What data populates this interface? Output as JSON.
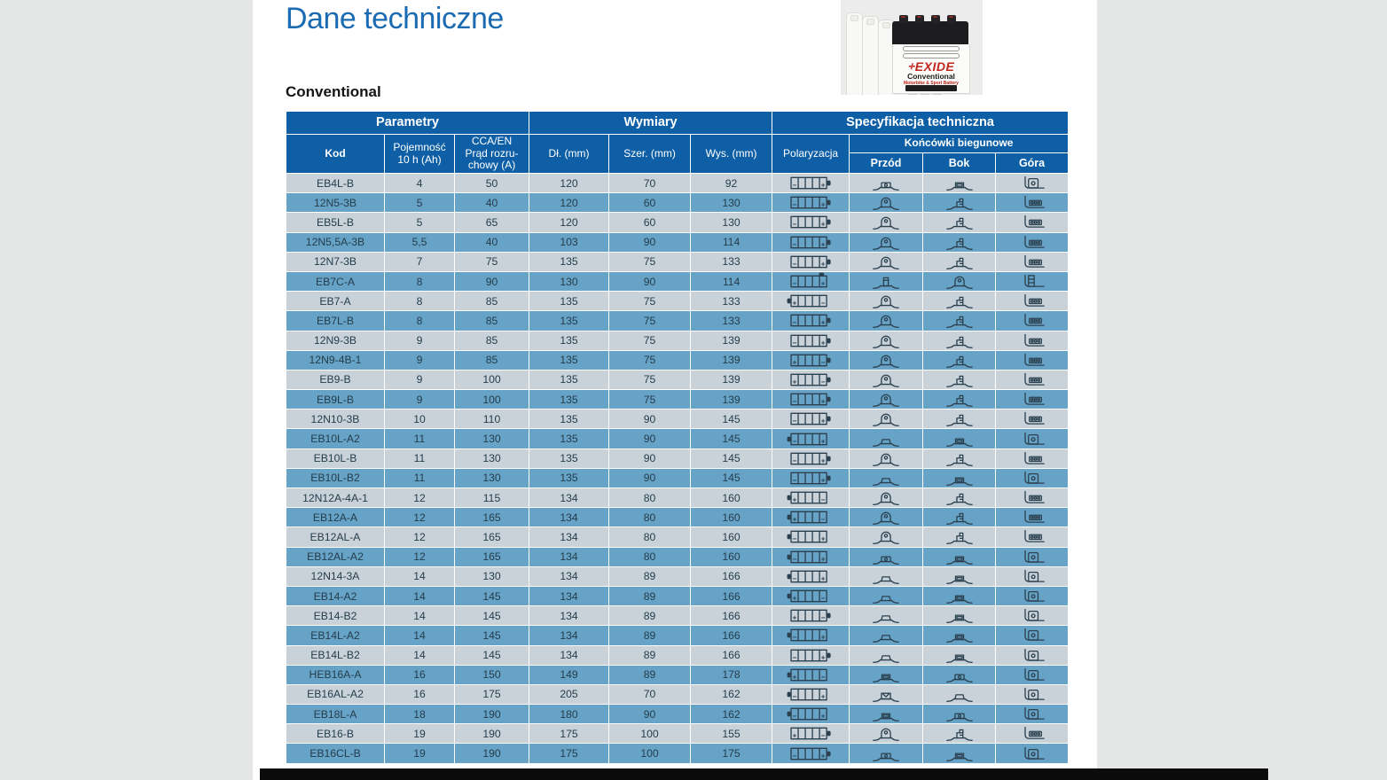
{
  "page": {
    "title": "Dane techniczne",
    "section_heading": "Conventional"
  },
  "product_image": {
    "brand": "EXIDE",
    "line": "Conventional",
    "subline": "Motorbike & Sport Battery"
  },
  "colors": {
    "header_blue": "#0e5fa5",
    "row_light": "#c9d2d9",
    "row_dark": "#67a3c7",
    "title_blue": "#1a6bb2",
    "icon_stroke": "#2b4150",
    "canvas_gray": "#e5e6e6",
    "page_white": "#ffffff"
  },
  "table": {
    "group_headers": {
      "parametry": "Parametry",
      "wymiary": "Wymiary",
      "specyfikacja": "Specyfikacja techniczna"
    },
    "column_headers": {
      "kod": "Kod",
      "pojemnosc": "Pojemność\n10 h (Ah)",
      "cca": "CCA/EN\nPrąd rozru-\nchowy (A)",
      "dl": "Dł. (mm)",
      "szer": "Szer. (mm)",
      "wys": "Wys. (mm)",
      "polaryzacja": "Polaryzacja",
      "koncowki": "Końcówki biegunowe",
      "przod": "Przód",
      "bok": "Bok",
      "gora": "Góra"
    },
    "rows": [
      {
        "code": "EB4L-B",
        "capacity": "4",
        "cca": "50",
        "length": "120",
        "width": "70",
        "height": "92",
        "polarity": {
          "left": "-",
          "right": "+",
          "bump": "right"
        },
        "front": "box-dot",
        "side": "box",
        "top": "bbox"
      },
      {
        "code": "12N5-3B",
        "capacity": "5",
        "cca": "40",
        "length": "120",
        "width": "60",
        "height": "130",
        "polarity": {
          "left": "-",
          "right": "+",
          "bump": "right"
        },
        "front": "dome",
        "side": "step",
        "top": "bars"
      },
      {
        "code": "EB5L-B",
        "capacity": "5",
        "cca": "65",
        "length": "120",
        "width": "60",
        "height": "130",
        "polarity": {
          "left": "-",
          "right": "+",
          "bump": "right"
        },
        "front": "dome",
        "side": "step",
        "top": "bars"
      },
      {
        "code": "12N5,5A-3B",
        "capacity": "5,5",
        "cca": "40",
        "length": "103",
        "width": "90",
        "height": "114",
        "polarity": {
          "left": "-",
          "right": "+",
          "bump": "right"
        },
        "front": "dome",
        "side": "step",
        "top": "bars"
      },
      {
        "code": "12N7-3B",
        "capacity": "7",
        "cca": "75",
        "length": "135",
        "width": "75",
        "height": "133",
        "polarity": {
          "left": "-",
          "right": "+",
          "bump": "right"
        },
        "front": "dome",
        "side": "step",
        "top": "bars"
      },
      {
        "code": "EB7C-A",
        "capacity": "8",
        "cca": "90",
        "length": "130",
        "width": "90",
        "height": "114",
        "polarity": {
          "left": "-",
          "right": "+",
          "bump": "top"
        },
        "front": "block",
        "side": "dome",
        "top": "bblock"
      },
      {
        "code": "EB7-A",
        "capacity": "8",
        "cca": "85",
        "length": "135",
        "width": "75",
        "height": "133",
        "polarity": {
          "left": "+",
          "right": "-",
          "bump": "left"
        },
        "front": "dome",
        "side": "step",
        "top": "bars"
      },
      {
        "code": "EB7L-B",
        "capacity": "8",
        "cca": "85",
        "length": "135",
        "width": "75",
        "height": "133",
        "polarity": {
          "left": "-",
          "right": "+",
          "bump": "right"
        },
        "front": "dome",
        "side": "step",
        "top": "bars"
      },
      {
        "code": "12N9-3B",
        "capacity": "9",
        "cca": "85",
        "length": "135",
        "width": "75",
        "height": "139",
        "polarity": {
          "left": "-",
          "right": "+",
          "bump": "right"
        },
        "front": "dome",
        "side": "step",
        "top": "bars"
      },
      {
        "code": "12N9-4B-1",
        "capacity": "9",
        "cca": "85",
        "length": "135",
        "width": "75",
        "height": "139",
        "polarity": {
          "left": "+",
          "right": "-",
          "bump": "right"
        },
        "front": "dome",
        "side": "step",
        "top": "bars"
      },
      {
        "code": "EB9-B",
        "capacity": "9",
        "cca": "100",
        "length": "135",
        "width": "75",
        "height": "139",
        "polarity": {
          "left": "+",
          "right": "-",
          "bump": "right"
        },
        "front": "dome",
        "side": "step",
        "top": "bars"
      },
      {
        "code": "EB9L-B",
        "capacity": "9",
        "cca": "100",
        "length": "135",
        "width": "75",
        "height": "139",
        "polarity": {
          "left": "-",
          "right": "+",
          "bump": "right"
        },
        "front": "dome",
        "side": "step",
        "top": "bars"
      },
      {
        "code": "12N10-3B",
        "capacity": "10",
        "cca": "110",
        "length": "135",
        "width": "90",
        "height": "145",
        "polarity": {
          "left": "-",
          "right": "+",
          "bump": "right"
        },
        "front": "dome",
        "side": "step",
        "top": "bars"
      },
      {
        "code": "EB10L-A2",
        "capacity": "11",
        "cca": "130",
        "length": "135",
        "width": "90",
        "height": "145",
        "polarity": {
          "left": "-",
          "right": "+",
          "bump": "left"
        },
        "front": "pad",
        "side": "box",
        "top": "bbox"
      },
      {
        "code": "EB10L-B",
        "capacity": "11",
        "cca": "130",
        "length": "135",
        "width": "90",
        "height": "145",
        "polarity": {
          "left": "-",
          "right": "+",
          "bump": "right"
        },
        "front": "dome",
        "side": "step",
        "top": "bars"
      },
      {
        "code": "EB10L-B2",
        "capacity": "11",
        "cca": "130",
        "length": "135",
        "width": "90",
        "height": "145",
        "polarity": {
          "left": "-",
          "right": "+",
          "bump": "right"
        },
        "front": "pad",
        "side": "box",
        "top": "bbox"
      },
      {
        "code": "12N12A-4A-1",
        "capacity": "12",
        "cca": "115",
        "length": "134",
        "width": "80",
        "height": "160",
        "polarity": {
          "left": "+",
          "right": "-",
          "bump": "left"
        },
        "front": "dome",
        "side": "step",
        "top": "bars"
      },
      {
        "code": "EB12A-A",
        "capacity": "12",
        "cca": "165",
        "length": "134",
        "width": "80",
        "height": "160",
        "polarity": {
          "left": "+",
          "right": "-",
          "bump": "left"
        },
        "front": "dome",
        "side": "step",
        "top": "bars"
      },
      {
        "code": "EB12AL-A",
        "capacity": "12",
        "cca": "165",
        "length": "134",
        "width": "80",
        "height": "160",
        "polarity": {
          "left": "-",
          "right": "+",
          "bump": "left"
        },
        "front": "dome",
        "side": "step",
        "top": "bars"
      },
      {
        "code": "EB12AL-A2",
        "capacity": "12",
        "cca": "165",
        "length": "134",
        "width": "80",
        "height": "160",
        "polarity": {
          "left": "-",
          "right": "+",
          "bump": "left"
        },
        "front": "box-dot",
        "side": "box",
        "top": "bbox"
      },
      {
        "code": "12N14-3A",
        "capacity": "14",
        "cca": "130",
        "length": "134",
        "width": "89",
        "height": "166",
        "polarity": {
          "left": "-",
          "right": "+",
          "bump": "left"
        },
        "front": "pad",
        "side": "box",
        "top": "bbox"
      },
      {
        "code": "EB14-A2",
        "capacity": "14",
        "cca": "145",
        "length": "134",
        "width": "89",
        "height": "166",
        "polarity": {
          "left": "+",
          "right": "-",
          "bump": "left"
        },
        "front": "pad",
        "side": "box",
        "top": "bbox"
      },
      {
        "code": "EB14-B2",
        "capacity": "14",
        "cca": "145",
        "length": "134",
        "width": "89",
        "height": "166",
        "polarity": {
          "left": "+",
          "right": "-",
          "bump": "right"
        },
        "front": "pad",
        "side": "box",
        "top": "bbox"
      },
      {
        "code": "EB14L-A2",
        "capacity": "14",
        "cca": "145",
        "length": "134",
        "width": "89",
        "height": "166",
        "polarity": {
          "left": "-",
          "right": "+",
          "bump": "left"
        },
        "front": "pad",
        "side": "box",
        "top": "bbox"
      },
      {
        "code": "EB14L-B2",
        "capacity": "14",
        "cca": "145",
        "length": "134",
        "width": "89",
        "height": "166",
        "polarity": {
          "left": "-",
          "right": "+",
          "bump": "right"
        },
        "front": "pad",
        "side": "box",
        "top": "bbox"
      },
      {
        "code": "HEB16A-A",
        "capacity": "16",
        "cca": "150",
        "length": "149",
        "width": "89",
        "height": "178",
        "polarity": {
          "left": "+",
          "right": "-",
          "bump": "left"
        },
        "front": "box",
        "side": "box-dot",
        "top": "bbox"
      },
      {
        "code": "EB16AL-A2",
        "capacity": "16",
        "cca": "175",
        "length": "205",
        "width": "70",
        "height": "162",
        "polarity": {
          "left": "-",
          "right": "+",
          "bump": "left"
        },
        "front": "notch",
        "side": "pad",
        "top": "bbox"
      },
      {
        "code": "EB18L-A",
        "capacity": "18",
        "cca": "190",
        "length": "180",
        "width": "90",
        "height": "162",
        "polarity": {
          "left": "-",
          "right": "+",
          "bump": "left"
        },
        "front": "box",
        "side": "box-dot",
        "top": "bbox"
      },
      {
        "code": "EB16-B",
        "capacity": "19",
        "cca": "190",
        "length": "175",
        "width": "100",
        "height": "155",
        "polarity": {
          "left": "+",
          "right": "-",
          "bump": "right"
        },
        "front": "dome",
        "side": "step",
        "top": "bars"
      },
      {
        "code": "EB16CL-B",
        "capacity": "19",
        "cca": "190",
        "length": "175",
        "width": "100",
        "height": "175",
        "polarity": {
          "left": "-",
          "right": "+",
          "bump": "right"
        },
        "front": "box-dot",
        "side": "box",
        "top": "bbox"
      }
    ]
  }
}
